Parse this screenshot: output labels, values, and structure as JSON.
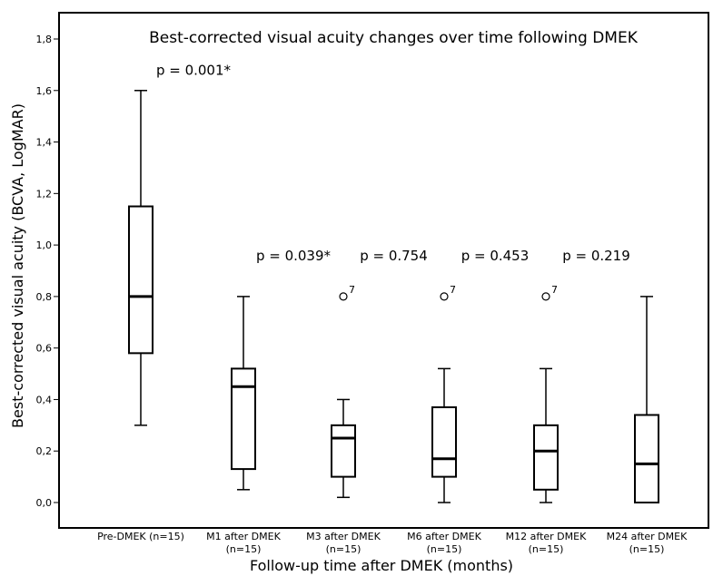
{
  "chart_data": {
    "type": "boxplot",
    "title": "Best-corrected visual acuity changes over time following DMEK",
    "xlabel": "Follow-up time after DMEK (months)",
    "ylabel": "Best-corrected visual acuity (BCVA, LogMAR)",
    "ylim": [
      0.0,
      1.8
    ],
    "yticks": [
      "0,0",
      "0,2",
      "0,4",
      "0,6",
      "0,8",
      "1,0",
      "1,2",
      "1,4",
      "1,6",
      "1,8"
    ],
    "ytick_values": [
      0,
      0.2,
      0.4,
      0.6,
      0.8,
      1.0,
      1.2,
      1.4,
      1.6,
      1.8
    ],
    "categories": [
      {
        "line1": "Pre-DMEK (n=15)",
        "line2": "",
        "min": 0.3,
        "q1": 0.58,
        "median": 0.8,
        "q3": 1.15,
        "max": 1.6,
        "outliers": []
      },
      {
        "line1": "M1 after DMEK",
        "line2": "(n=15)",
        "min": 0.05,
        "q1": 0.13,
        "median": 0.45,
        "q3": 0.52,
        "max": 0.8,
        "outliers": []
      },
      {
        "line1": "M3 after DMEK",
        "line2": "(n=15)",
        "min": 0.02,
        "q1": 0.1,
        "median": 0.25,
        "q3": 0.3,
        "max": 0.4,
        "outliers": [
          {
            "value": 0.8,
            "label": "7"
          }
        ]
      },
      {
        "line1": "M6 after DMEK",
        "line2": "(n=15)",
        "min": 0.0,
        "q1": 0.1,
        "median": 0.17,
        "q3": 0.37,
        "max": 0.52,
        "outliers": [
          {
            "value": 0.8,
            "label": "7"
          }
        ]
      },
      {
        "line1": "M12 after DMEK",
        "line2": "(n=15)",
        "min": 0.0,
        "q1": 0.05,
        "median": 0.2,
        "q3": 0.3,
        "max": 0.52,
        "outliers": [
          {
            "value": 0.8,
            "label": "7"
          }
        ]
      },
      {
        "line1": "M24 after DMEK",
        "line2": "(n=15)",
        "min": 0.0,
        "q1": 0.0,
        "median": 0.15,
        "q3": 0.34,
        "max": 0.8,
        "outliers": []
      }
    ],
    "annotations": [
      {
        "text": "p = 0.001*",
        "between": [
          0,
          0
        ],
        "y": 1.66
      },
      {
        "text": "p = 0.039*",
        "between": [
          1,
          2
        ],
        "y": 0.94
      },
      {
        "text": "p = 0.754",
        "between": [
          2,
          3
        ],
        "y": 0.94
      },
      {
        "text": "p = 0.453",
        "between": [
          3,
          4
        ],
        "y": 0.94
      },
      {
        "text": "p = 0.219",
        "between": [
          4,
          5
        ],
        "y": 0.94
      }
    ]
  }
}
